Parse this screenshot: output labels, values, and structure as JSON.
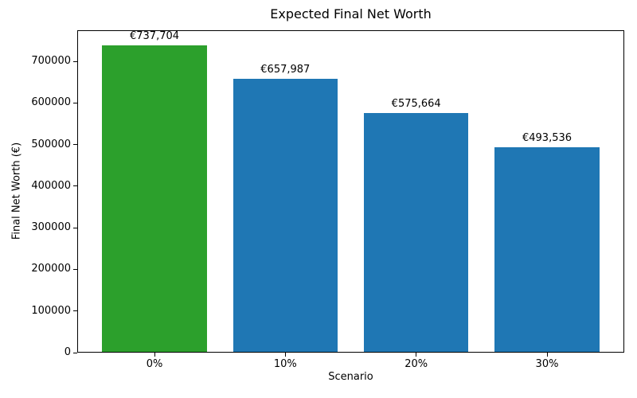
{
  "figure": {
    "background_color": "#ffffff",
    "text_color": "#000000"
  },
  "chart_data": {
    "type": "bar",
    "title": "Expected Final Net Worth",
    "xlabel": "Scenario",
    "ylabel": "Final Net Worth (€)",
    "categories": [
      "0%",
      "10%",
      "20%",
      "30%"
    ],
    "values": [
      737704,
      657987,
      575664,
      493536
    ],
    "bar_labels": [
      "€737,704",
      "€657,987",
      "€575,664",
      "€493,536"
    ],
    "bar_colors": [
      "#2ca02c",
      "#1f77b4",
      "#1f77b4",
      "#1f77b4"
    ],
    "ylim": [
      0,
      774589
    ],
    "yticks": [
      0,
      100000,
      200000,
      300000,
      400000,
      500000,
      600000,
      700000
    ],
    "xlim": [
      -0.59,
      3.59
    ],
    "bar_width": 0.8,
    "grid": false,
    "legend": "none"
  }
}
